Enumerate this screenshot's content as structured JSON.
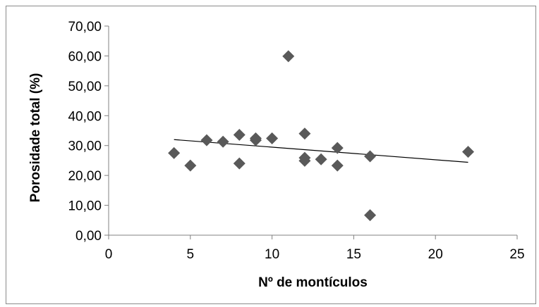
{
  "chart_data": {
    "type": "scatter",
    "title": "",
    "xlabel": "Nº de montículos",
    "ylabel": "Porosidade total (%)",
    "xlim": [
      0,
      25
    ],
    "ylim": [
      0,
      70
    ],
    "x_ticks": [
      "0",
      "5",
      "10",
      "15",
      "20",
      "25"
    ],
    "y_ticks": [
      "0,00",
      "10,00",
      "20,00",
      "30,00",
      "40,00",
      "50,00",
      "60,00",
      "70,00"
    ],
    "grid": false,
    "legend": "none",
    "marker": "diamond",
    "marker_color": "#595959",
    "trendline_color": "#000000",
    "points": [
      {
        "x": 4,
        "y": 27.5
      },
      {
        "x": 5,
        "y": 23.3
      },
      {
        "x": 6,
        "y": 31.8
      },
      {
        "x": 7,
        "y": 31.3
      },
      {
        "x": 8,
        "y": 33.6
      },
      {
        "x": 8,
        "y": 24.0
      },
      {
        "x": 9,
        "y": 32.4
      },
      {
        "x": 9,
        "y": 31.8
      },
      {
        "x": 10,
        "y": 32.4
      },
      {
        "x": 11,
        "y": 59.9
      },
      {
        "x": 12,
        "y": 34.0
      },
      {
        "x": 12,
        "y": 25.9
      },
      {
        "x": 12,
        "y": 24.9
      },
      {
        "x": 13,
        "y": 25.4
      },
      {
        "x": 14,
        "y": 29.2
      },
      {
        "x": 14,
        "y": 23.3
      },
      {
        "x": 16,
        "y": 26.4
      },
      {
        "x": 16,
        "y": 6.7
      },
      {
        "x": 22,
        "y": 27.9
      }
    ],
    "trendline": {
      "x": [
        4,
        22
      ],
      "y": [
        32.0,
        24.4
      ]
    }
  }
}
